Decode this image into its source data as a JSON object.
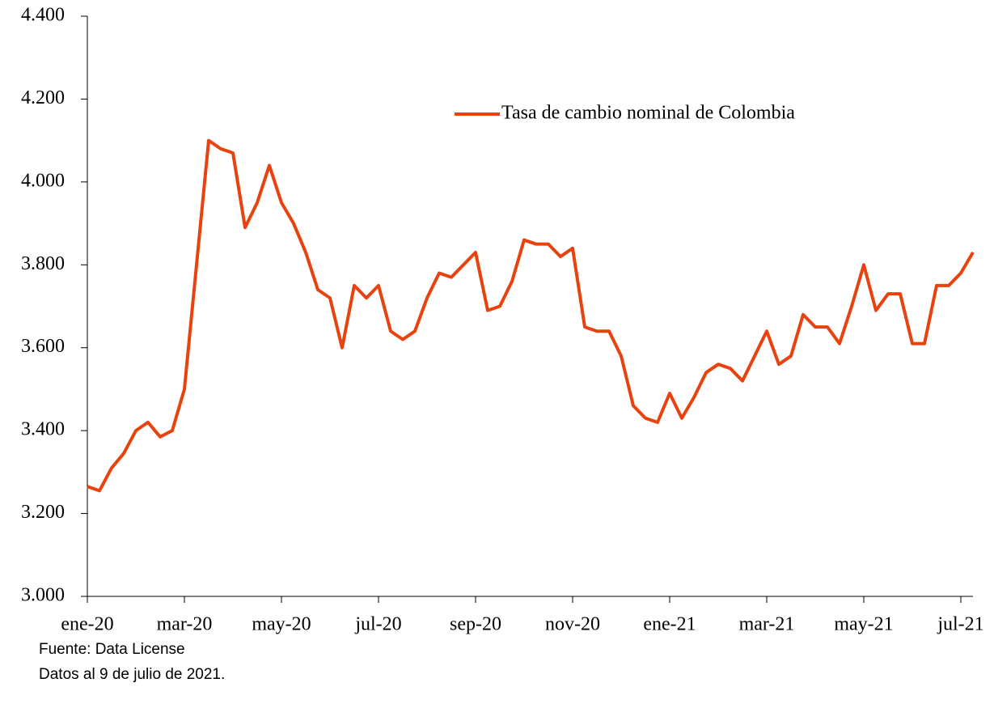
{
  "chart_data": {
    "type": "line",
    "categories": [
      "ene-20",
      null,
      null,
      null,
      null,
      null,
      null,
      null,
      "mar-20",
      null,
      null,
      null,
      null,
      null,
      null,
      null,
      "may-20",
      null,
      null,
      null,
      null,
      null,
      null,
      null,
      "jul-20",
      null,
      null,
      null,
      null,
      null,
      null,
      null,
      "sep-20",
      null,
      null,
      null,
      null,
      null,
      null,
      null,
      "nov-20",
      null,
      null,
      null,
      null,
      null,
      null,
      null,
      "ene-21",
      null,
      null,
      null,
      null,
      null,
      null,
      null,
      "mar-21",
      null,
      null,
      null,
      null,
      null,
      null,
      null,
      "may-21",
      null,
      null,
      null,
      null,
      null,
      null,
      null,
      "jul-21",
      null
    ],
    "series": [
      {
        "name": "Tasa de cambio nominal de Colombia",
        "color": "#e8420f",
        "values": [
          3265,
          3255,
          3310,
          3345,
          3400,
          3420,
          3385,
          3400,
          3500,
          3800,
          4100,
          4080,
          4070,
          3890,
          3950,
          4040,
          3950,
          3900,
          3830,
          3740,
          3720,
          3600,
          3750,
          3720,
          3750,
          3640,
          3620,
          3640,
          3720,
          3780,
          3770,
          3800,
          3830,
          3690,
          3700,
          3760,
          3860,
          3850,
          3850,
          3820,
          3840,
          3650,
          3640,
          3640,
          3580,
          3460,
          3430,
          3420,
          3490,
          3430,
          3480,
          3540,
          3560,
          3550,
          3520,
          3580,
          3640,
          3560,
          3580,
          3680,
          3650,
          3650,
          3610,
          3700,
          3800,
          3690,
          3730,
          3730,
          3610,
          3610,
          3750,
          3750,
          3780,
          3830
        ]
      }
    ],
    "ylim": [
      3000,
      4400
    ],
    "yticks": [
      {
        "value": 3000,
        "label": "3.000"
      },
      {
        "value": 3200,
        "label": "3.200"
      },
      {
        "value": 3400,
        "label": "3.400"
      },
      {
        "value": 3600,
        "label": "3.600"
      },
      {
        "value": 3800,
        "label": "3.800"
      },
      {
        "value": 4000,
        "label": "4.000"
      },
      {
        "value": 4200,
        "label": "4.200"
      },
      {
        "value": 4400,
        "label": "4.400"
      }
    ],
    "notes": [
      "Fuente: Data License",
      "Datos al 9 de julio de 2021."
    ]
  }
}
